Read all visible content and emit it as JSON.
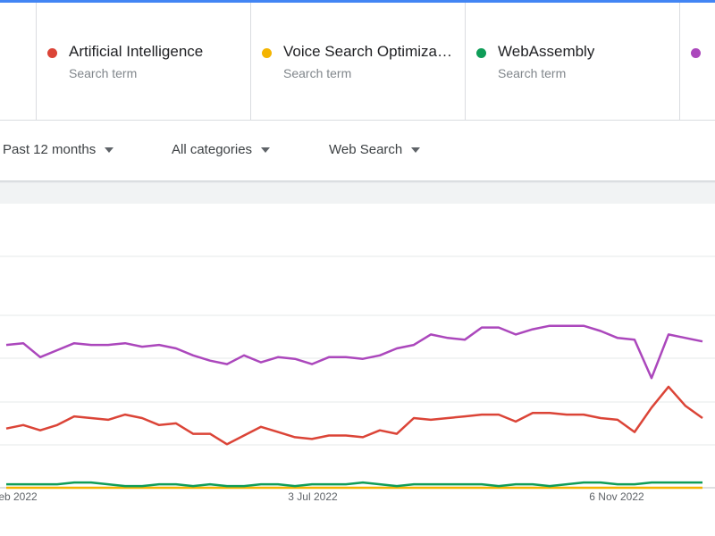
{
  "terms": [
    {
      "name": "Artificial Intelligence",
      "sub": "Search term",
      "color": "#db4437"
    },
    {
      "name": "Voice Search Optimization",
      "sub": "Search term",
      "color": "#f4b400"
    },
    {
      "name": "WebAssembly",
      "sub": "Search term",
      "color": "#0f9d58"
    },
    {
      "name": "",
      "sub": "",
      "color": "#ab47bc"
    }
  ],
  "filters": {
    "time": "Past 12 months",
    "category": "All categories",
    "search_type": "Web Search"
  },
  "chart_data": {
    "type": "line",
    "x_ticks": [
      "eb 2022",
      "3 Jul 2022",
      "6 Nov 2022"
    ],
    "ylim": [
      0,
      100
    ],
    "grid": true,
    "series": [
      {
        "name": "Artificial Intelligence",
        "color": "#db4437",
        "values": [
          34,
          36,
          33,
          36,
          41,
          40,
          39,
          42,
          40,
          36,
          37,
          31,
          31,
          25,
          30,
          35,
          32,
          29,
          28,
          30,
          30,
          29,
          33,
          31,
          40,
          39,
          40,
          41,
          42,
          42,
          38,
          43,
          43,
          42,
          42,
          40,
          39,
          32,
          46,
          58,
          47,
          40
        ]
      },
      {
        "name": "Voice Search Optimization",
        "color": "#f4b400",
        "values": [
          0,
          0,
          0,
          0,
          0,
          0,
          0,
          0,
          0,
          0,
          0,
          0,
          0,
          0,
          0,
          0,
          0,
          0,
          0,
          0,
          0,
          0,
          0,
          0,
          0,
          0,
          0,
          0,
          0,
          0,
          0,
          0,
          0,
          0,
          0,
          0,
          0,
          0,
          0,
          0,
          0,
          0
        ]
      },
      {
        "name": "WebAssembly",
        "color": "#0f9d58",
        "values": [
          2,
          2,
          2,
          2,
          3,
          3,
          2,
          1,
          1,
          2,
          2,
          1,
          2,
          1,
          1,
          2,
          2,
          1,
          2,
          2,
          2,
          3,
          2,
          1,
          2,
          2,
          2,
          2,
          2,
          1,
          2,
          2,
          1,
          2,
          3,
          3,
          2,
          2,
          3,
          3,
          3,
          3
        ]
      },
      {
        "name": "",
        "color": "#ab47bc",
        "values": [
          82,
          83,
          75,
          79,
          83,
          82,
          82,
          83,
          81,
          82,
          80,
          76,
          73,
          71,
          76,
          72,
          75,
          74,
          71,
          75,
          75,
          74,
          76,
          80,
          82,
          88,
          86,
          85,
          92,
          92,
          88,
          91,
          93,
          93,
          93,
          90,
          86,
          85,
          63,
          88,
          86,
          84
        ]
      }
    ]
  }
}
